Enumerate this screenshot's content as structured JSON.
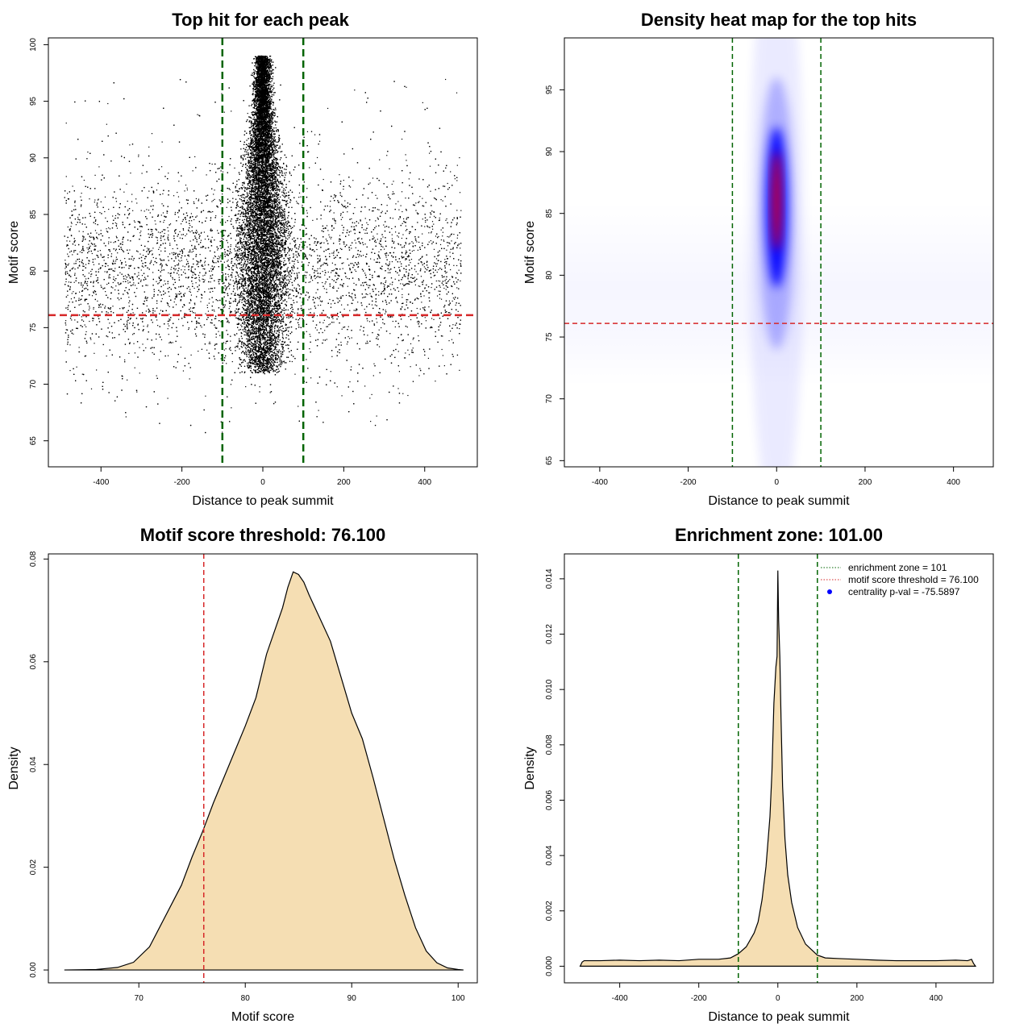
{
  "colors": {
    "points": "#000000",
    "center_line": "#006400",
    "threshold_line": "#d62728",
    "fill": "#f5deb3",
    "heat_low": "#ffffff",
    "heat_mid": "#0000ff",
    "heat_high": "#ff0000",
    "legend_dot": "#0000ff"
  },
  "chart_data": [
    {
      "type": "scatter",
      "title": "Top hit for each peak",
      "xlabel": "Distance to peak summit",
      "ylabel": "Motif score",
      "xlim": [
        -530,
        530
      ],
      "ylim": [
        62.7,
        100.6
      ],
      "xticks": [
        -400,
        -200,
        0,
        200,
        400
      ],
      "yticks": [
        65,
        70,
        75,
        80,
        85,
        90,
        95,
        100
      ],
      "x_range": [
        -490,
        490
      ],
      "y_range": [
        64.4,
        99.0
      ],
      "central_cluster": {
        "x_center": 0,
        "x_spread": 30,
        "y_center": 84,
        "y_range": [
          71,
          99
        ]
      },
      "background_y_center": 80,
      "vlines": [
        -100,
        100
      ],
      "hline": 76.1
    },
    {
      "type": "heatmap",
      "title": "Density heat map for the top hits",
      "xlabel": "Distance to peak summit",
      "ylabel": "Motif score",
      "xlim": [
        -480,
        490
      ],
      "ylim": [
        64.5,
        99.2
      ],
      "xticks": [
        -400,
        -200,
        0,
        200,
        400
      ],
      "yticks": [
        65,
        70,
        75,
        80,
        85,
        90,
        95
      ],
      "peak": {
        "x": 0,
        "y": 86
      },
      "vlines": [
        -100,
        100
      ],
      "hline": 76.1
    },
    {
      "type": "area",
      "title": "Motif score threshold: 76.100",
      "xlabel": "Motif score",
      "ylabel": "Density",
      "xlim": [
        61.5,
        101.8
      ],
      "ylim": [
        -0.0025,
        0.081
      ],
      "xticks": [
        70,
        80,
        90,
        100
      ],
      "yticks": [
        0.0,
        0.02,
        0.04,
        0.06,
        0.08
      ],
      "ytick_labels": [
        "0.00",
        "0.02",
        "0.04",
        "0.06",
        "0.08"
      ],
      "vline": 76.1,
      "x": [
        63,
        66,
        68,
        69.5,
        71,
        72,
        73,
        74,
        75,
        76,
        77,
        78,
        79,
        80,
        81,
        82,
        83,
        83.5,
        84,
        84.5,
        85,
        85.5,
        86,
        87,
        88,
        89,
        90,
        91,
        92,
        93,
        94,
        95,
        96,
        97,
        98,
        99,
        100,
        100.5
      ],
      "y": [
        0.0,
        0.0001,
        0.0005,
        0.0015,
        0.0045,
        0.0085,
        0.0125,
        0.0165,
        0.022,
        0.027,
        0.0325,
        0.0375,
        0.0425,
        0.0475,
        0.053,
        0.0615,
        0.0675,
        0.0705,
        0.0745,
        0.0775,
        0.077,
        0.0755,
        0.073,
        0.0685,
        0.064,
        0.057,
        0.05,
        0.045,
        0.0375,
        0.0295,
        0.0215,
        0.0145,
        0.0082,
        0.0037,
        0.0014,
        0.0004,
        0.0001,
        0.0
      ]
    },
    {
      "type": "area",
      "title": "Enrichment zone: 101.00",
      "xlabel": "Distance to peak summit",
      "ylabel": "Density",
      "xlim": [
        -540,
        545
      ],
      "ylim": [
        -0.0006,
        0.0149
      ],
      "xticks": [
        -400,
        -200,
        0,
        200,
        400
      ],
      "yticks": [
        0.0,
        0.002,
        0.004,
        0.006,
        0.008,
        0.01,
        0.012,
        0.014
      ],
      "ytick_labels": [
        "0.000",
        "0.002",
        "0.004",
        "0.006",
        "0.008",
        "0.010",
        "0.012",
        "0.014"
      ],
      "vlines": [
        -100,
        100
      ],
      "x": [
        -500,
        -495,
        -490,
        -450,
        -400,
        -350,
        -300,
        -250,
        -200,
        -150,
        -120,
        -100,
        -80,
        -60,
        -50,
        -40,
        -30,
        -20,
        -15,
        -10,
        -5,
        -2,
        0,
        2,
        5,
        8,
        12,
        18,
        25,
        35,
        50,
        70,
        100,
        120,
        150,
        200,
        250,
        300,
        350,
        400,
        450,
        480,
        490,
        495,
        500
      ],
      "y": [
        0.0,
        0.00015,
        0.0002,
        0.0002,
        0.00022,
        0.0002,
        0.00022,
        0.0002,
        0.00025,
        0.00025,
        0.0003,
        0.00045,
        0.0007,
        0.0012,
        0.0016,
        0.0024,
        0.0036,
        0.0054,
        0.007,
        0.0095,
        0.0108,
        0.0112,
        0.0143,
        0.0125,
        0.0112,
        0.009,
        0.0065,
        0.0046,
        0.0033,
        0.0023,
        0.0014,
        0.0008,
        0.0004,
        0.0003,
        0.00028,
        0.00025,
        0.00022,
        0.0002,
        0.0002,
        0.0002,
        0.00022,
        0.0002,
        0.00025,
        0.0001,
        0.0
      ],
      "legend": [
        {
          "label": "enrichment zone = 101",
          "kind": "dotted-line",
          "color": "#006400"
        },
        {
          "label": "motif score threshold = 76.100",
          "kind": "dotted-line",
          "color": "#d62728"
        },
        {
          "label": "centrality p-val = -75.5897",
          "kind": "dot",
          "color": "#0000ff"
        }
      ],
      "legend_position": "top-right"
    }
  ]
}
